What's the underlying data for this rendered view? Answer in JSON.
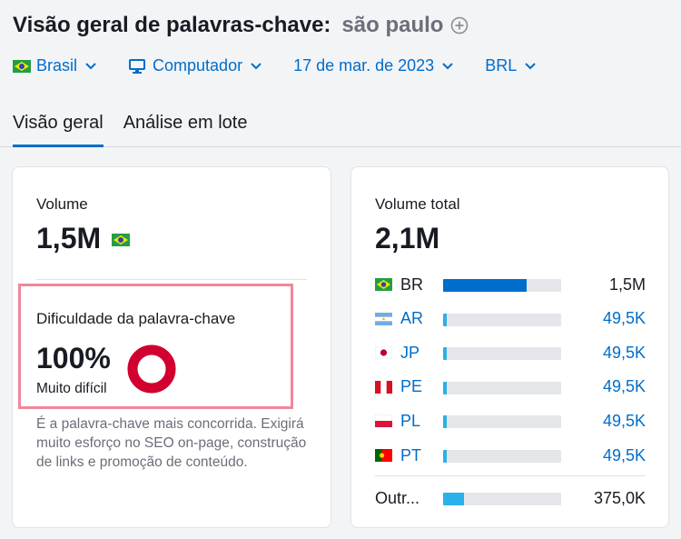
{
  "header": {
    "title": "Visão geral de palavras-chave:",
    "keyword": "são paulo",
    "filters": {
      "country": "Brasil",
      "device": "Computador",
      "date": "17 de mar. de 2023",
      "currency": "BRL"
    },
    "tabs": [
      {
        "label": "Visão geral",
        "active": true
      },
      {
        "label": "Análise em lote",
        "active": false
      }
    ]
  },
  "volume_card": {
    "label": "Volume",
    "value": "1,5M",
    "flag_icon": "flag-br-icon",
    "kd_label": "Dificuldade da palavra-chave",
    "kd_value": "100%",
    "kd_percent": 100,
    "kd_level": "Muito difícil",
    "kd_color": "#d1002f",
    "description": "É a palavra-chave mais concorrida. Exigirá muito esforço no SEO on-page, construção de links e promoção de conteúdo."
  },
  "total_card": {
    "label": "Volume total",
    "value": "2,1M",
    "rows": [
      {
        "code": "BR",
        "value": "1,5M",
        "fraction": 0.71,
        "link": false
      },
      {
        "code": "AR",
        "value": "49,5K",
        "fraction": 0.024,
        "link": true
      },
      {
        "code": "JP",
        "value": "49,5K",
        "fraction": 0.024,
        "link": true
      },
      {
        "code": "PE",
        "value": "49,5K",
        "fraction": 0.024,
        "link": true
      },
      {
        "code": "PL",
        "value": "49,5K",
        "fraction": 0.024,
        "link": true
      },
      {
        "code": "PT",
        "value": "49,5K",
        "fraction": 0.024,
        "link": true
      }
    ],
    "other": {
      "code": "Outr...",
      "value": "375,0K",
      "fraction": 0.18
    }
  },
  "colors": {
    "accent": "#006dca",
    "bar_light": "#2cb0ea",
    "highlight": "#f0879a"
  }
}
